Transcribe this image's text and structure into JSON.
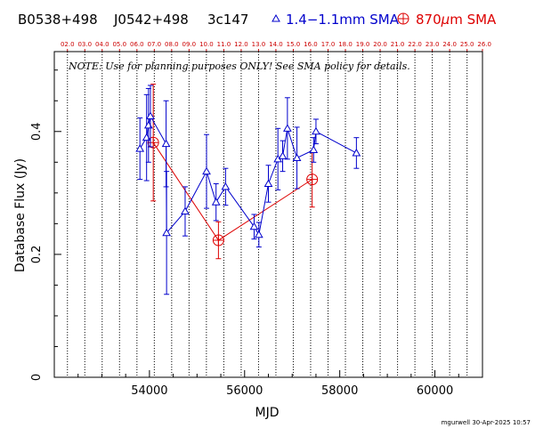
{
  "header": {
    "source_names": [
      "B0538+498",
      "J0542+498",
      "3c147"
    ],
    "legend_blue": "1.4−1.1mm SMA",
    "legend_red_prefix": "870",
    "legend_red_mu": "μ",
    "legend_red_suffix": "m SMA"
  },
  "note": "NOTE: Use for planning purposes ONLY!  See SMA policy for details.",
  "signature": "mgurwell 30-Apr-2025 10:57",
  "colors": {
    "blue": "#0000cc",
    "red": "#dd0000",
    "top_axis": "#cc0000",
    "grid": "#000000"
  },
  "chart_data": {
    "type": "scatter",
    "xlabel": "MJD",
    "ylabel": "Database Flux (Jy)",
    "xlim": [
      52000,
      61000
    ],
    "ylim": [
      0,
      0.53
    ],
    "x_ticks": [
      54000,
      56000,
      58000,
      60000
    ],
    "x_tick_labels": [
      "54000",
      "56000",
      "58000",
      "60000"
    ],
    "y_ticks": [
      0,
      0.2,
      0.4
    ],
    "y_tick_labels": [
      "0",
      "0.2",
      "0.4"
    ],
    "top_axis_labels": [
      "02.0",
      "03.0",
      "04.0",
      "05.0",
      "06.0",
      "07.0",
      "08.0",
      "09.0",
      "10.0",
      "11.0",
      "12.0",
      "13.0",
      "14.0",
      "15.0",
      "16.0",
      "17.0",
      "18.0",
      "19.0",
      "20.0",
      "21.0",
      "22.0",
      "23.0",
      "24.0",
      "25.0",
      "26.0"
    ],
    "top_axis_mjd": [
      52276,
      52641,
      53006,
      53371,
      53737,
      54102,
      54467,
      54832,
      55197,
      55563,
      55928,
      56293,
      56658,
      57023,
      57388,
      57754,
      58119,
      58484,
      58849,
      59215,
      59580,
      59945,
      60310,
      60676,
      61041
    ],
    "series": [
      {
        "name": "1.4−1.1mm SMA",
        "marker": "triangle",
        "color": "#0000cc",
        "points": [
          {
            "x": 53800,
            "y": 0.372,
            "err": 0.05
          },
          {
            "x": 53940,
            "y": 0.39,
            "err": 0.07
          },
          {
            "x": 53980,
            "y": 0.41,
            "err": 0.06
          },
          {
            "x": 54020,
            "y": 0.425,
            "err": 0.05
          },
          {
            "x": 54350,
            "y": 0.38,
            "err": 0.07
          },
          {
            "x": 54360,
            "y": 0.235,
            "err": 0.1
          },
          {
            "x": 54750,
            "y": 0.27,
            "err": 0.04
          },
          {
            "x": 55200,
            "y": 0.335,
            "err": 0.06
          },
          {
            "x": 55400,
            "y": 0.285,
            "err": 0.03
          },
          {
            "x": 55600,
            "y": 0.31,
            "err": 0.03
          },
          {
            "x": 56200,
            "y": 0.245,
            "err": 0.02
          },
          {
            "x": 56300,
            "y": 0.232,
            "err": 0.02
          },
          {
            "x": 56500,
            "y": 0.315,
            "err": 0.03
          },
          {
            "x": 56700,
            "y": 0.355,
            "err": 0.05
          },
          {
            "x": 56800,
            "y": 0.36,
            "err": 0.025
          },
          {
            "x": 56900,
            "y": 0.405,
            "err": 0.05
          },
          {
            "x": 57100,
            "y": 0.357,
            "err": 0.05
          },
          {
            "x": 57450,
            "y": 0.37,
            "err": 0.02
          },
          {
            "x": 57500,
            "y": 0.4,
            "err": 0.02
          },
          {
            "x": 58350,
            "y": 0.365,
            "err": 0.025
          }
        ]
      },
      {
        "name": "870μm SMA",
        "marker": "circle-plus",
        "color": "#dd0000",
        "points": [
          {
            "x": 54080,
            "y": 0.382,
            "err": 0.095
          },
          {
            "x": 55450,
            "y": 0.223,
            "err": 0.03
          },
          {
            "x": 57420,
            "y": 0.322,
            "err": 0.045
          }
        ]
      }
    ]
  }
}
